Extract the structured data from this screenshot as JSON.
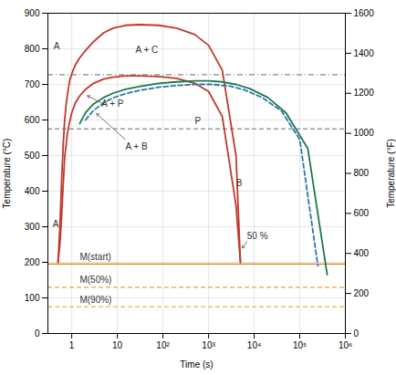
{
  "chart_data": {
    "type": "line",
    "xlabel": "Time (s)",
    "ylabel": "Temperature (°C)",
    "y2label": "Temperature (°F)",
    "log": "x",
    "grid": true,
    "xlim": [
      0.3,
      1000000
    ],
    "ylim": [
      0,
      900
    ],
    "y2lim": [
      0,
      1600
    ],
    "xticks": [
      1,
      10,
      {
        "value": 100,
        "label": "10²"
      },
      {
        "value": 1000,
        "label": "10³"
      },
      {
        "value": 10000,
        "label": "10⁴"
      },
      {
        "value": 100000,
        "label": "10⁵"
      },
      {
        "value": 1000000,
        "label": "10⁶"
      }
    ],
    "yticks": [
      0,
      100,
      200,
      300,
      400,
      500,
      600,
      700,
      800,
      900
    ],
    "y2ticks": [
      0,
      200,
      400,
      600,
      800,
      1000,
      1200,
      1400,
      1600
    ],
    "reference_lines": [
      {
        "y": 727,
        "color": "#888888",
        "line_style": "dashdot"
      },
      {
        "y": 575,
        "color": "#999999",
        "line_style": "dashed"
      },
      {
        "y": 195,
        "color": "#E07B00",
        "line_style": "solid"
      },
      {
        "y": 130,
        "color": "#F0A030",
        "line_style": "dashed"
      },
      {
        "y": 75,
        "color": "#F0C060",
        "line_style": "dashed"
      }
    ],
    "series": [
      {
        "color": "#C0392B",
        "line_style": "solid",
        "x": [
          0.5,
          0.55,
          0.6,
          0.65,
          0.7,
          0.75,
          0.8,
          0.9,
          1.0,
          1.2,
          1.5,
          2.0,
          3.0,
          5.0,
          8.0,
          15.0,
          30.0,
          80.0,
          200.0,
          500.0,
          1000.0,
          2000.0,
          4000.0,
          5000.0
        ],
        "values": [
          200,
          300,
          430,
          530,
          600,
          640,
          670,
          710,
          730,
          755,
          775,
          795,
          820,
          845,
          858,
          866,
          868,
          866,
          858,
          840,
          810,
          740,
          500,
          200
        ]
      },
      {
        "color": "#C0392B",
        "line_style": "solid",
        "x": [
          0.5,
          0.55,
          0.6,
          0.65,
          0.7,
          0.8,
          0.9,
          1.0,
          1.2,
          1.5,
          2.0,
          3.0,
          5.0,
          8.0,
          15.0,
          30.0,
          80.0,
          200.0,
          500.0,
          1000.0,
          2000.0,
          4000.0,
          5000.0
        ],
        "values": [
          200,
          250,
          330,
          420,
          495,
          560,
          595,
          620,
          648,
          668,
          686,
          703,
          715,
          720,
          724,
          724,
          722,
          717,
          703,
          680,
          610,
          360,
          200
        ]
      },
      {
        "color": "#1A7A4A",
        "line_style": "solid",
        "x": [
          1.5,
          2.0,
          3.0,
          5.0,
          8.0,
          15.0,
          30.0,
          80.0,
          200.0,
          500.0,
          1000.0,
          2000.0,
          4000.0,
          8000.0,
          20000.0,
          50000.0,
          150000.0,
          400000.0
        ],
        "values": [
          590,
          620,
          645,
          663,
          675,
          686,
          694,
          703,
          707,
          710,
          710,
          707,
          700,
          688,
          663,
          620,
          520,
          165
        ]
      },
      {
        "color": "#2E74B5",
        "line_style": "dashed",
        "x": [
          2.0,
          3.0,
          5.0,
          8.0,
          15.0,
          30.0,
          80.0,
          200.0,
          500.0,
          1200.0,
          3000.0,
          6000.0,
          15000.0,
          40000.0,
          100000.0,
          250000.0
        ],
        "values": [
          600,
          627,
          648,
          662,
          674,
          683,
          692,
          697,
          700,
          700,
          695,
          685,
          663,
          625,
          545,
          190
        ]
      }
    ],
    "annotations": [
      {
        "text": "A",
        "x": 0.4,
        "y": 800
      },
      {
        "text": "A + C",
        "x": 25,
        "y": 788
      },
      {
        "text": "A + P",
        "x": 4.5,
        "y": 637
      },
      {
        "text": "A + B",
        "x": 15,
        "y": 516
      },
      {
        "text": "P",
        "x": 500,
        "y": 588
      },
      {
        "text": "B",
        "x": 4000,
        "y": 415
      },
      {
        "text": "A",
        "x": 0.38,
        "y": 300
      },
      {
        "text": "50 %",
        "x": 7000,
        "y": 265
      },
      {
        "text": "M(start)",
        "x": 1.5,
        "y": 207
      },
      {
        "text": "M(50%)",
        "x": 1.5,
        "y": 142
      },
      {
        "text": "M(90%)",
        "x": 1.5,
        "y": 87
      }
    ],
    "arrows": [
      {
        "x1": 4.5,
        "y1": 648,
        "x2": 2.2,
        "y2": 668
      },
      {
        "x1": 15,
        "y1": 545,
        "x2": 3.5,
        "y2": 618
      },
      {
        "x1": 7000,
        "y1": 258,
        "x2": 5500,
        "y2": 240
      }
    ]
  }
}
